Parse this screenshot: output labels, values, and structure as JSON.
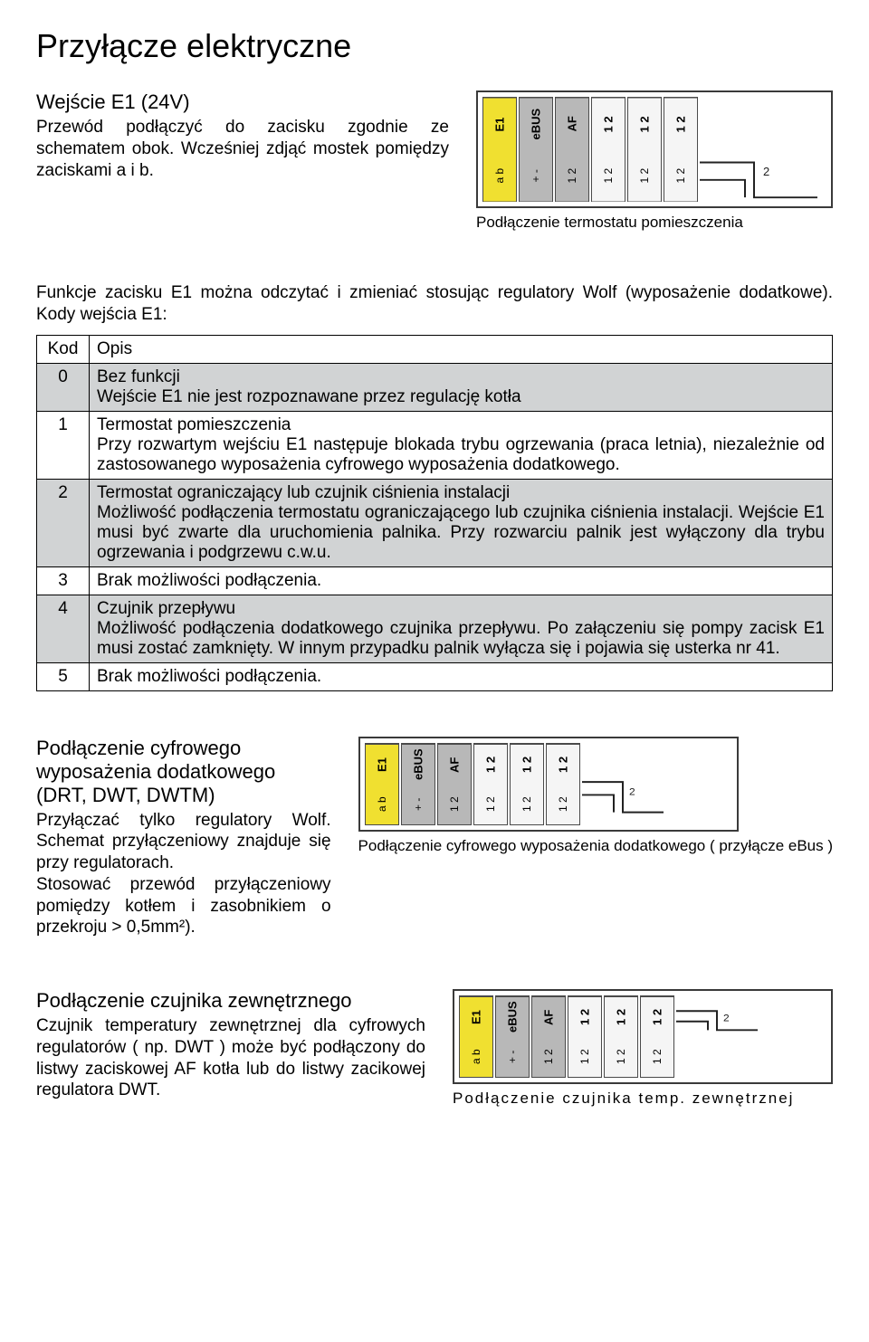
{
  "title": "Przyłącze elektryczne",
  "e1_input": {
    "heading": "Wejście E1 (24V)",
    "text": "Przewód podłączyć do zacisku zgodnie ze schematem obok. Wcześniej zdjąć mostek pomiędzy zaciskami a i b.",
    "diagram_caption": "Podłączenie termostatu pomieszczenia"
  },
  "e1_functions_intro": "Funkcje zacisku E1 można odczytać i zmieniać stosując regulatory Wolf (wyposażenie dodatkowe). Kody wejścia E1:",
  "codes_table": {
    "header_kod": "Kod",
    "header_opis": "Opis",
    "rows": [
      {
        "code": "0",
        "shaded": true,
        "text": "Bez funkcji\nWejście E1 nie jest rozpoznawane przez regulację kotła"
      },
      {
        "code": "1",
        "shaded": false,
        "text": "Termostat pomieszczenia\nPrzy rozwartym wejściu E1 następuje blokada trybu ogrzewania (praca letnia), niezależnie od zastosowanego wyposażenia cyfrowego wyposażenia dodatkowego."
      },
      {
        "code": "2",
        "shaded": true,
        "text": "Termostat ograniczający lub czujnik ciśnienia instalacji\nMożliwość podłączenia termostatu ograniczającego lub czujnika ciśnienia instalacji. Wejście E1 musi być zwarte dla uruchomienia palnika. Przy rozwarciu palnik jest wyłączony  dla trybu ogrzewania i podgrzewu c.w.u."
      },
      {
        "code": "3",
        "shaded": false,
        "text": "Brak możliwości podłączenia."
      },
      {
        "code": "4",
        "shaded": true,
        "text": "Czujnik przepływu\nMożliwość podłączenia dodatkowego czujnika przepływu. Po załączeniu się pompy zacisk E1 musi zostać zamknięty. W innym przypadku palnik wyłącza się i pojawia się usterka nr 41."
      },
      {
        "code": "5",
        "shaded": false,
        "text": "Brak możliwości podłączenia."
      }
    ]
  },
  "digital_accessory": {
    "heading": "Podłączenie cyfrowego wyposażenia dodatkowego (DRT, DWT, DWTM)",
    "text": "Przyłączać tylko regulatory Wolf. Schemat przyłączeniowy znajduje się przy regulatorach.\nStosować przewód przyłączeniowy pomiędzy kotłem i zasobnikiem o przekroju > 0,5mm²).",
    "caption": "Podłączenie cyfrowego wyposażenia dodatkowego ( przyłącze eBus )"
  },
  "external_sensor": {
    "heading": "Podłączenie czujnika zewnętrznego",
    "text": "Czujnik temperatury zewnętrznej dla cyfrowych regulatorów ( np. DWT ) może być podłączony do listwy zaciskowej AF kotła lub do listwy zacikowej regulatora DWT.",
    "caption": "Podłączenie czujnika temp. zewnętrznej"
  },
  "terminal": {
    "labels": [
      "E1",
      "eBUS",
      "AF"
    ],
    "sublabels": [
      "a b",
      "+ -",
      "1 2"
    ],
    "numbers": [
      "1 2",
      "1 2",
      "1 2"
    ]
  },
  "colors": {
    "shaded_bg": "#d1d3d4",
    "yellow": "#f0e030",
    "grey": "#b8b8b8",
    "border": "#000000"
  }
}
